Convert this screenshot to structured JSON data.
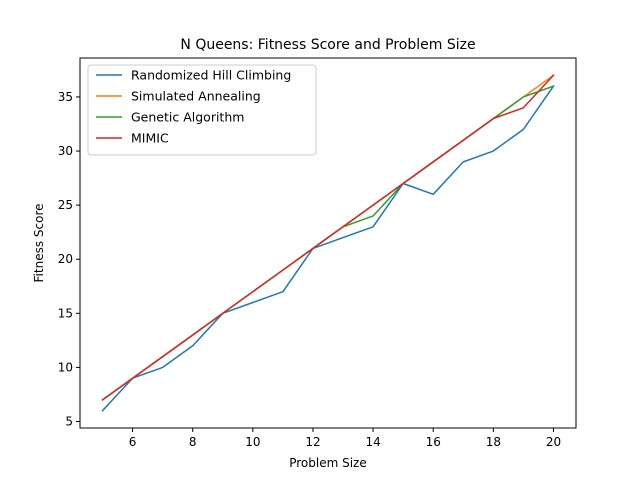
{
  "chart_data": {
    "type": "line",
    "title": "N Queens: Fitness Score and Problem Size",
    "xlabel": "Problem Size",
    "ylabel": "Fitness Score",
    "xlim": [
      4.25,
      20.75
    ],
    "ylim": [
      4.4,
      38.6
    ],
    "xticks": [
      6,
      8,
      10,
      12,
      14,
      16,
      18,
      20
    ],
    "yticks": [
      5,
      10,
      15,
      20,
      25,
      30,
      35
    ],
    "grid": false,
    "legend_position": "top-left",
    "x": [
      5,
      6,
      7,
      8,
      9,
      10,
      11,
      12,
      13,
      14,
      15,
      16,
      17,
      18,
      19,
      20
    ],
    "series": [
      {
        "name": "Randomized Hill Climbing",
        "color": "#1f77b4",
        "values": [
          6,
          9,
          10,
          12,
          15,
          16,
          17,
          21,
          22,
          23,
          27,
          26,
          29,
          30,
          32,
          36
        ]
      },
      {
        "name": "Simulated Annealing",
        "color": "#ff7f0e",
        "values": [
          7,
          9,
          11,
          13,
          15,
          17,
          19,
          21,
          23,
          25,
          27,
          29,
          31,
          33,
          35,
          37
        ]
      },
      {
        "name": "Genetic Algorithm",
        "color": "#2ca02c",
        "values": [
          7,
          9,
          11,
          13,
          15,
          17,
          19,
          21,
          23,
          24,
          27,
          29,
          31,
          33,
          35,
          36
        ]
      },
      {
        "name": "MIMIC",
        "color": "#d62728",
        "values": [
          7,
          9,
          11,
          13,
          15,
          17,
          19,
          21,
          23,
          25,
          27,
          29,
          31,
          33,
          34,
          37
        ]
      }
    ]
  }
}
